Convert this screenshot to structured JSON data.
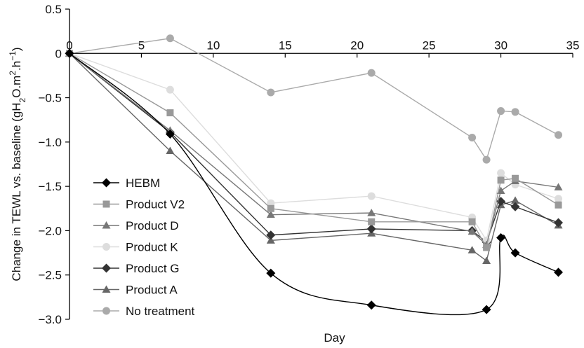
{
  "chart_data": {
    "type": "line",
    "xlabel": "Day",
    "ylabel_parts": {
      "pre": "Change in TEWL vs. baseline (gH",
      "sub": "2",
      "mid": "O.m",
      "sup1": "2",
      "mid2": ".h",
      "sup2": "−1",
      "post": ")"
    },
    "xlim": [
      0,
      35
    ],
    "ylim": [
      -3.0,
      0.5
    ],
    "x_ticks": [
      0,
      5,
      10,
      15,
      20,
      25,
      30,
      35
    ],
    "y_ticks": [
      {
        "value": 0.5,
        "label": "0.5"
      },
      {
        "value": 0,
        "label": "0"
      },
      {
        "value": -0.5,
        "label": "−0.5"
      },
      {
        "value": -1.0,
        "label": "−1.0"
      },
      {
        "value": -1.5,
        "label": "−1.5"
      },
      {
        "value": -2.0,
        "label": "−2.0"
      },
      {
        "value": -2.5,
        "label": "−2.5"
      },
      {
        "value": -3.0,
        "label": "−3.0"
      }
    ],
    "grid": false,
    "legend_position": "bottom-left",
    "series": [
      {
        "name": "HEBM",
        "color": "#000000",
        "marker": "diamond",
        "smooth": true,
        "x": [
          0,
          7,
          14,
          21,
          29,
          30,
          31,
          34
        ],
        "y": [
          0,
          -0.91,
          -2.48,
          -2.84,
          -2.89,
          -2.08,
          -2.25,
          -2.47
        ]
      },
      {
        "name": "Product V2",
        "color": "#999999",
        "marker": "square",
        "smooth": false,
        "x": [
          0,
          7,
          14,
          21,
          28,
          29,
          30,
          31,
          34
        ],
        "y": [
          0,
          -0.67,
          -1.75,
          -1.9,
          -1.9,
          -2.19,
          -1.43,
          -1.41,
          -1.71
        ]
      },
      {
        "name": "Product D",
        "color": "#777777",
        "marker": "triangle",
        "smooth": false,
        "x": [
          0,
          7,
          14,
          21,
          28,
          29,
          30,
          31,
          34
        ],
        "y": [
          0,
          -0.87,
          -1.82,
          -1.8,
          -2.01,
          -2.16,
          -1.55,
          -1.44,
          -1.51
        ]
      },
      {
        "name": "Product K",
        "color": "#dddddd",
        "marker": "circle",
        "smooth": false,
        "x": [
          0,
          7,
          14,
          21,
          28,
          29,
          30,
          31,
          34
        ],
        "y": [
          0,
          -0.41,
          -1.69,
          -1.61,
          -1.85,
          -2.11,
          -1.35,
          -1.48,
          -1.64
        ]
      },
      {
        "name": "Product G",
        "color": "#333333",
        "marker": "diamond",
        "smooth": false,
        "x": [
          0,
          7,
          14,
          21,
          28,
          29,
          30,
          31,
          34
        ],
        "y": [
          0,
          -0.89,
          -2.05,
          -1.98,
          -2.0,
          -2.13,
          -1.67,
          -1.73,
          -1.91
        ]
      },
      {
        "name": "Product A",
        "color": "#666666",
        "marker": "triangle",
        "smooth": false,
        "x": [
          0,
          7,
          14,
          21,
          28,
          29,
          30,
          31,
          34
        ],
        "y": [
          0,
          -1.1,
          -2.11,
          -2.03,
          -2.22,
          -2.34,
          -1.71,
          -1.66,
          -1.94
        ]
      },
      {
        "name": "No treatment",
        "color": "#aaaaaa",
        "marker": "circle",
        "smooth": false,
        "x": [
          0,
          7,
          14,
          21,
          28,
          29,
          30,
          31,
          34
        ],
        "y": [
          0,
          0.17,
          -0.44,
          -0.22,
          -0.95,
          -1.2,
          -0.65,
          -0.66,
          -0.92
        ]
      }
    ]
  }
}
